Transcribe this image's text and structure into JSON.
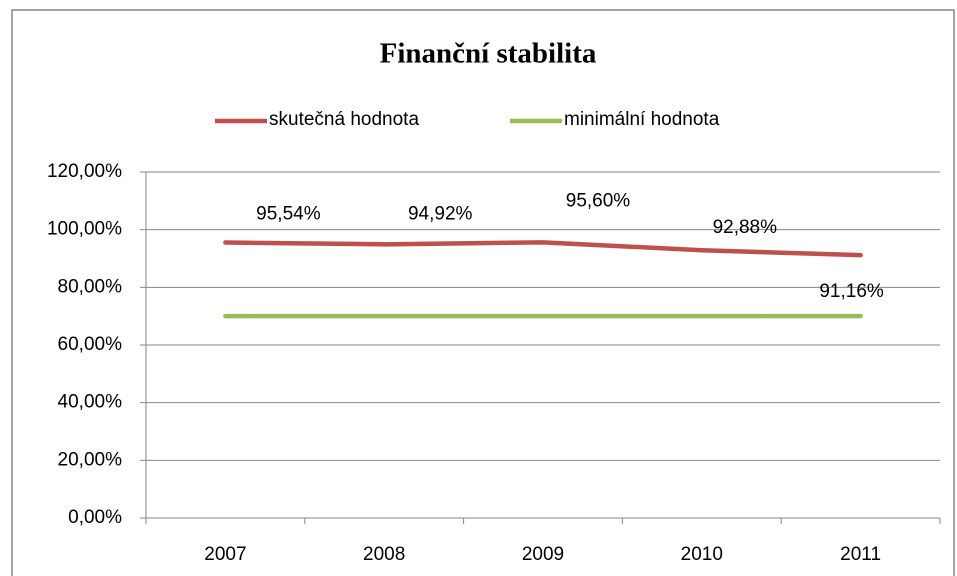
{
  "chart_data": {
    "type": "line",
    "title": "Finanční stabilita",
    "categories": [
      "2007",
      "2008",
      "2009",
      "2010",
      "2011"
    ],
    "series": [
      {
        "name": "skutečná hodnota",
        "color": "#c0504d",
        "values": [
          95.54,
          94.92,
          95.6,
          92.88,
          91.16
        ],
        "value_labels": [
          "95,54%",
          "94,92%",
          "95,60%",
          "92,88%",
          "91,16%"
        ]
      },
      {
        "name": "minimální hodnota",
        "color": "#9bbb59",
        "values": [
          70,
          70,
          70,
          70,
          70
        ]
      }
    ],
    "ylim": [
      0,
      120
    ],
    "yticks": [
      {
        "value": 0,
        "label": "0,00%"
      },
      {
        "value": 20,
        "label": "20,00%"
      },
      {
        "value": 40,
        "label": "40,00%"
      },
      {
        "value": 60,
        "label": "60,00%"
      },
      {
        "value": 80,
        "label": "80,00%"
      },
      {
        "value": 100,
        "label": "100,00%"
      },
      {
        "value": 120,
        "label": "120,00%"
      }
    ],
    "grid": true,
    "legend": "top"
  }
}
